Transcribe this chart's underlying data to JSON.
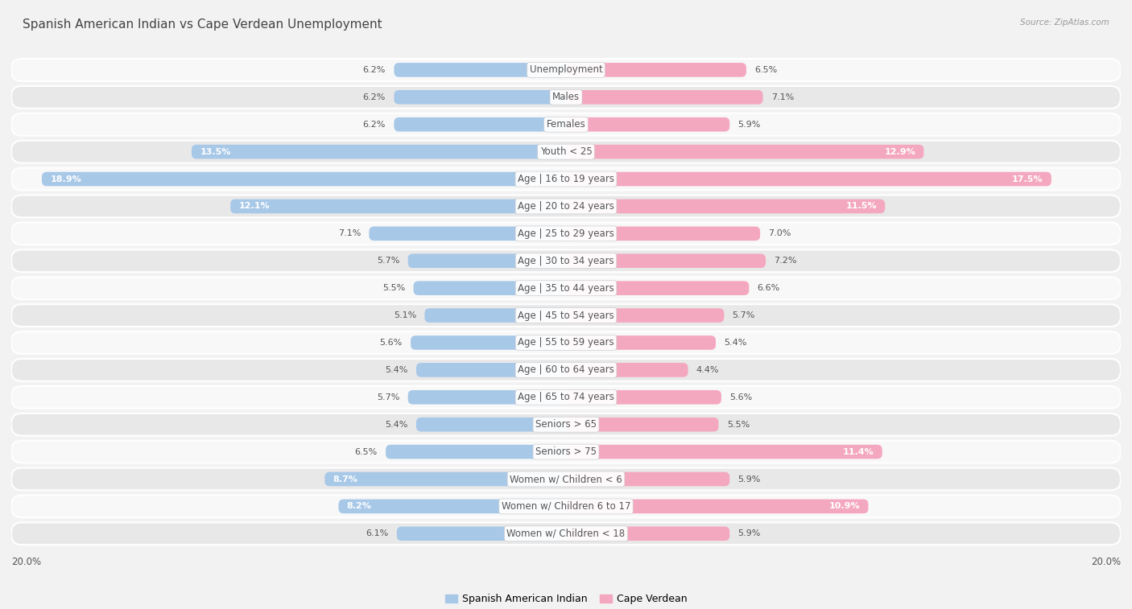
{
  "title": "Spanish American Indian vs Cape Verdean Unemployment",
  "source": "Source: ZipAtlas.com",
  "categories": [
    "Unemployment",
    "Males",
    "Females",
    "Youth < 25",
    "Age | 16 to 19 years",
    "Age | 20 to 24 years",
    "Age | 25 to 29 years",
    "Age | 30 to 34 years",
    "Age | 35 to 44 years",
    "Age | 45 to 54 years",
    "Age | 55 to 59 years",
    "Age | 60 to 64 years",
    "Age | 65 to 74 years",
    "Seniors > 65",
    "Seniors > 75",
    "Women w/ Children < 6",
    "Women w/ Children 6 to 17",
    "Women w/ Children < 18"
  ],
  "left_values": [
    6.2,
    6.2,
    6.2,
    13.5,
    18.9,
    12.1,
    7.1,
    5.7,
    5.5,
    5.1,
    5.6,
    5.4,
    5.7,
    5.4,
    6.5,
    8.7,
    8.2,
    6.1
  ],
  "right_values": [
    6.5,
    7.1,
    5.9,
    12.9,
    17.5,
    11.5,
    7.0,
    7.2,
    6.6,
    5.7,
    5.4,
    4.4,
    5.6,
    5.5,
    11.4,
    5.9,
    10.9,
    5.9
  ],
  "left_color": "#a8c8e8",
  "right_color": "#f4a8c0",
  "left_label": "Spanish American Indian",
  "right_label": "Cape Verdean",
  "background_color": "#f2f2f2",
  "row_color_odd": "#e8e8e8",
  "row_color_even": "#f8f8f8",
  "max_value": 20.0,
  "title_fontsize": 11,
  "label_fontsize": 8.5,
  "value_fontsize": 8.0,
  "axis_fontsize": 8.5
}
